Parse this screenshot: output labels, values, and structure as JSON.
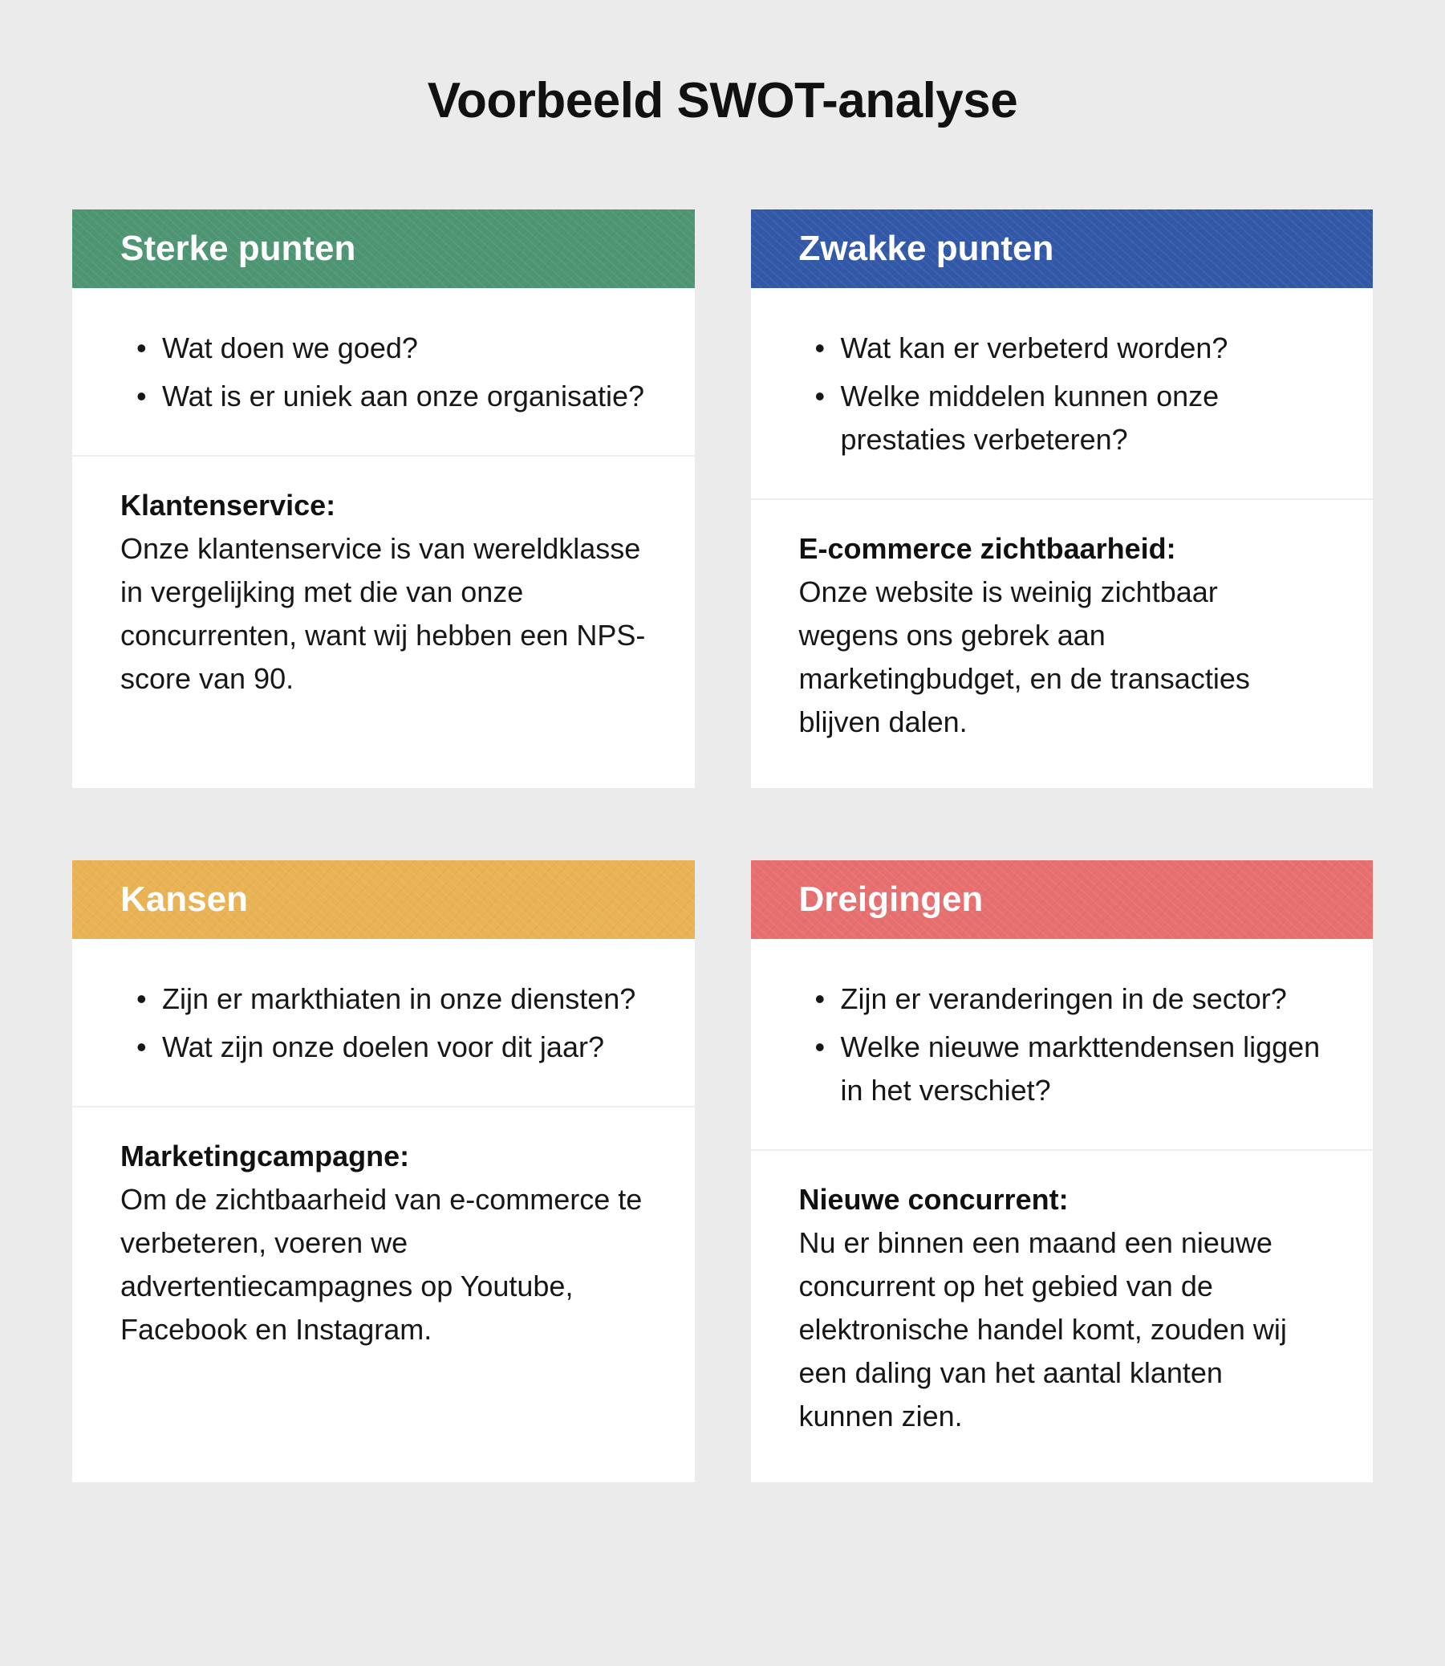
{
  "title": "Voorbeeld SWOT-analyse",
  "layout": {
    "type": "infographic",
    "grid": "2x2",
    "background_color": "#ebebeb",
    "card_background": "#ffffff",
    "text_color": "#171717",
    "divider_color": "#eeeeee",
    "title_fontsize": 62,
    "header_fontsize": 44,
    "body_fontsize": 36,
    "gap_row": 90,
    "gap_col": 70
  },
  "quadrants": [
    {
      "id": "strengths",
      "header": "Sterke punten",
      "header_color": "#4d9573",
      "questions": [
        "Wat doen we goed?",
        "Wat is er uniek aan onze organisatie?"
      ],
      "body_title": "Klantenservice:",
      "body_text": "Onze klantenservice is van wereldklasse in vergelijking met die van onze concurrenten, want wij hebben een NPS-score van 90."
    },
    {
      "id": "weaknesses",
      "header": "Zwakke punten",
      "header_color": "#3258a8",
      "questions": [
        "Wat kan er verbeterd worden?",
        "Welke middelen kunnen onze prestaties verbeteren?"
      ],
      "body_title": "E-commerce zichtbaarheid:",
      "body_text": "Onze website is weinig zichtbaar wegens ons gebrek aan marketingbudget, en de transacties blijven dalen."
    },
    {
      "id": "opportunities",
      "header": "Kansen",
      "header_color": "#e9b255",
      "questions": [
        "Zijn er markthiaten in onze diensten?",
        "Wat zijn onze doelen voor dit jaar?"
      ],
      "body_title": "Marketingcampagne:",
      "body_text": "Om de zichtbaarheid van e-commerce te verbeteren, voeren we advertentiecampagnes op Youtube, Facebook en Instagram."
    },
    {
      "id": "threats",
      "header": "Dreigingen",
      "header_color": "#e76f6f",
      "questions": [
        "Zijn er veranderingen in de sector?",
        "Welke nieuwe markttendensen liggen in het verschiet?"
      ],
      "body_title": "Nieuwe concurrent:",
      "body_text": "Nu er binnen een maand een nieuwe concurrent op het gebied van de elektronische handel komt, zouden wij een daling van het aantal klanten kunnen zien."
    }
  ]
}
